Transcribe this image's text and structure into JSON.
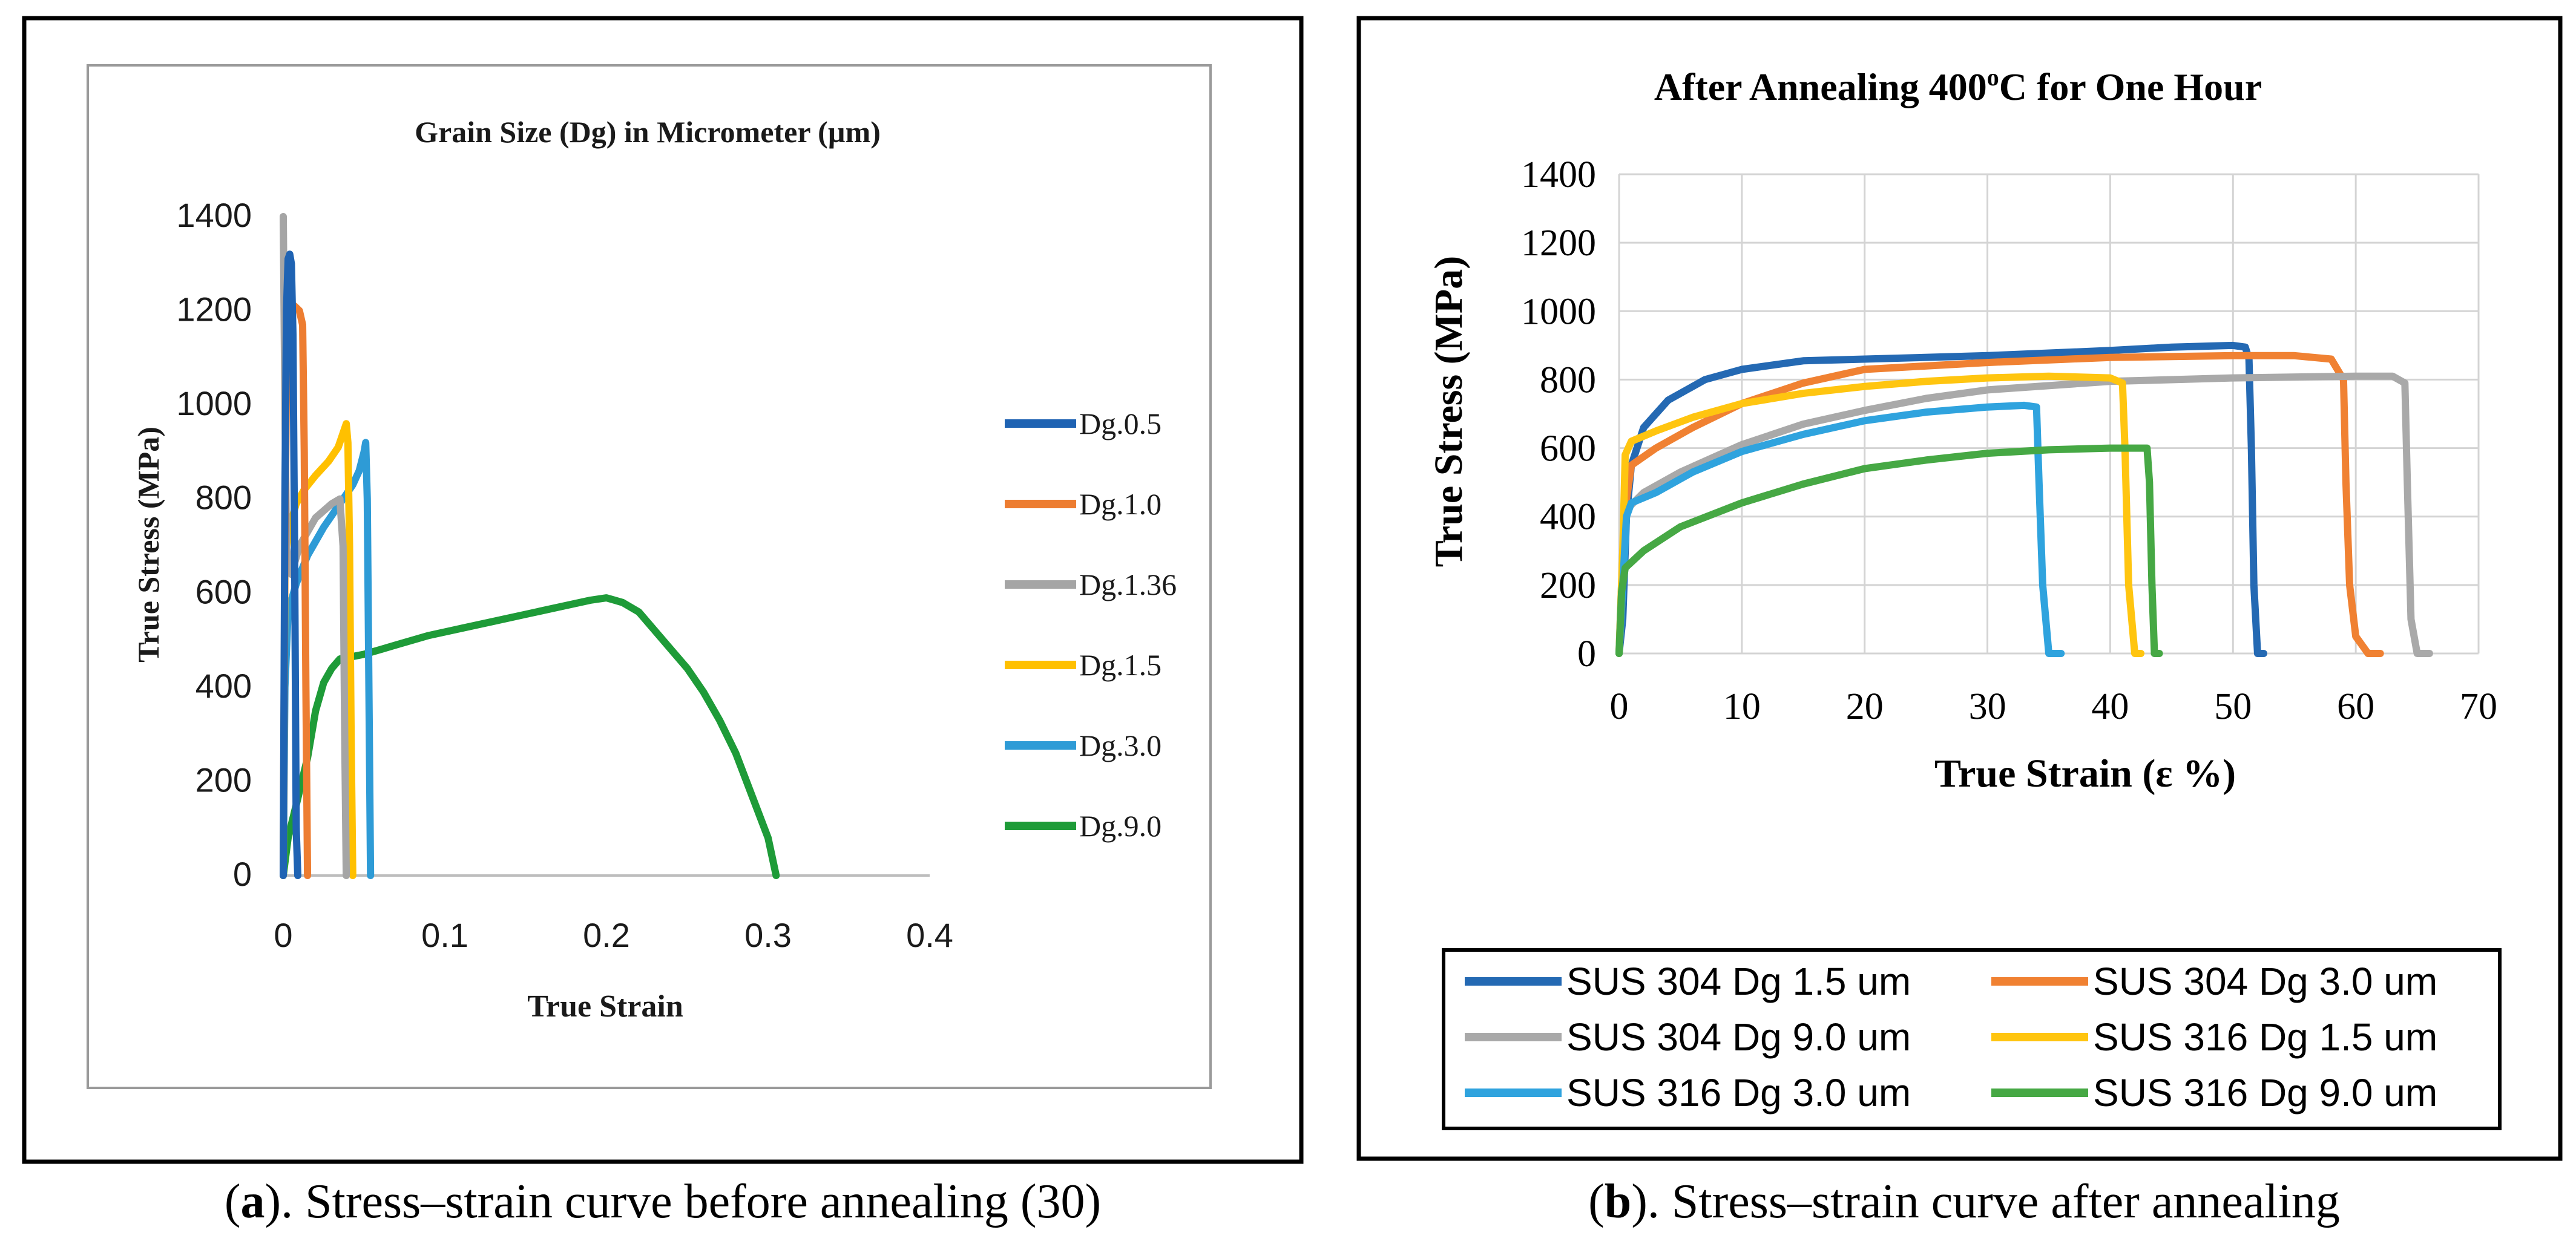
{
  "chart_data": [
    {
      "type": "line",
      "title": "Grain Size (Dg) in Micrometer (µm)",
      "xlabel": "True Strain",
      "ylabel": "True Stress (MPa)",
      "xlim": [
        0,
        0.4
      ],
      "ylim": [
        0,
        1400
      ],
      "xticks": [
        "0",
        "0.1",
        "0.2",
        "0.3",
        "0.4"
      ],
      "yticks": [
        "0",
        "200",
        "400",
        "600",
        "800",
        "1000",
        "1200",
        "1400"
      ],
      "legend_position": "right",
      "caption_letter": "a",
      "caption_text": ". Stress–strain curve before annealing (30)",
      "series": [
        {
          "name": "Dg.0.5",
          "color": "#1f63b3",
          "points": [
            [
              0,
              0
            ],
            [
              0.001,
              800
            ],
            [
              0.002,
              1200
            ],
            [
              0.003,
              1310
            ],
            [
              0.004,
              1320
            ],
            [
              0.005,
              1300
            ],
            [
              0.006,
              1150
            ],
            [
              0.007,
              700
            ],
            [
              0.008,
              100
            ],
            [
              0.009,
              0
            ]
          ]
        },
        {
          "name": "Dg.1.0",
          "color": "#ed7d31",
          "points": [
            [
              0,
              0
            ],
            [
              0.001,
              700
            ],
            [
              0.002,
              1050
            ],
            [
              0.004,
              1190
            ],
            [
              0.007,
              1210
            ],
            [
              0.01,
              1200
            ],
            [
              0.012,
              1170
            ],
            [
              0.013,
              900
            ],
            [
              0.014,
              400
            ],
            [
              0.015,
              0
            ]
          ]
        },
        {
          "name": "Dg.1.36",
          "color": "#a5a5a5",
          "points": [
            [
              0,
              1400
            ],
            [
              0.001,
              1000
            ],
            [
              0.002,
              700
            ],
            [
              0.005,
              640
            ],
            [
              0.01,
              700
            ],
            [
              0.02,
              760
            ],
            [
              0.03,
              790
            ],
            [
              0.035,
              800
            ],
            [
              0.037,
              700
            ],
            [
              0.038,
              300
            ],
            [
              0.039,
              0
            ]
          ]
        },
        {
          "name": "Dg.1.5",
          "color": "#ffc000",
          "points": [
            [
              0,
              0
            ],
            [
              0.001,
              650
            ],
            [
              0.003,
              730
            ],
            [
              0.008,
              790
            ],
            [
              0.013,
              820
            ],
            [
              0.02,
              850
            ],
            [
              0.028,
              880
            ],
            [
              0.034,
              910
            ],
            [
              0.037,
              940
            ],
            [
              0.039,
              960
            ],
            [
              0.04,
              920
            ],
            [
              0.041,
              700
            ],
            [
              0.042,
              300
            ],
            [
              0.043,
              0
            ]
          ]
        },
        {
          "name": "Dg.3.0",
          "color": "#2e9bd6",
          "points": [
            [
              0,
              0
            ],
            [
              0.001,
              400
            ],
            [
              0.003,
              560
            ],
            [
              0.008,
              620
            ],
            [
              0.015,
              680
            ],
            [
              0.025,
              740
            ],
            [
              0.035,
              790
            ],
            [
              0.043,
              830
            ],
            [
              0.047,
              860
            ],
            [
              0.05,
              900
            ],
            [
              0.051,
              920
            ],
            [
              0.052,
              800
            ],
            [
              0.053,
              400
            ],
            [
              0.054,
              0
            ]
          ]
        },
        {
          "name": "Dg.9.0",
          "color": "#1e9b38",
          "points": [
            [
              0,
              0
            ],
            [
              0.003,
              80
            ],
            [
              0.008,
              150
            ],
            [
              0.015,
              250
            ],
            [
              0.02,
              350
            ],
            [
              0.025,
              410
            ],
            [
              0.03,
              440
            ],
            [
              0.035,
              460
            ],
            [
              0.05,
              470
            ],
            [
              0.07,
              490
            ],
            [
              0.09,
              510
            ],
            [
              0.11,
              525
            ],
            [
              0.13,
              540
            ],
            [
              0.15,
              555
            ],
            [
              0.17,
              570
            ],
            [
              0.19,
              585
            ],
            [
              0.2,
              590
            ],
            [
              0.21,
              580
            ],
            [
              0.22,
              560
            ],
            [
              0.23,
              520
            ],
            [
              0.24,
              480
            ],
            [
              0.25,
              440
            ],
            [
              0.26,
              390
            ],
            [
              0.27,
              330
            ],
            [
              0.28,
              260
            ],
            [
              0.29,
              170
            ],
            [
              0.3,
              80
            ],
            [
              0.305,
              0
            ]
          ]
        }
      ]
    },
    {
      "type": "line",
      "title_main": "After Annealing 400",
      "title_sup": "o",
      "title_tail": "C for One Hour",
      "xlabel": "True Strain (ε %)",
      "ylabel": "True  Stress (MPa)",
      "xlim": [
        0,
        70
      ],
      "ylim": [
        0,
        1400
      ],
      "xticks": [
        "0",
        "10",
        "20",
        "30",
        "40",
        "50",
        "60",
        "70"
      ],
      "yticks": [
        "0",
        "200",
        "400",
        "600",
        "800",
        "1000",
        "1200",
        "1400"
      ],
      "legend_position": "bottom",
      "caption_letter": "b",
      "caption_text": ". Stress–strain curve after annealing",
      "series": [
        {
          "name": "SUS 304 Dg 1.5 um",
          "color": "#2469b3",
          "points": [
            [
              0,
              0
            ],
            [
              0.3,
              100
            ],
            [
              0.6,
              400
            ],
            [
              1,
              550
            ],
            [
              2,
              660
            ],
            [
              4,
              740
            ],
            [
              7,
              800
            ],
            [
              10,
              830
            ],
            [
              15,
              855
            ],
            [
              20,
              860
            ],
            [
              30,
              870
            ],
            [
              40,
              885
            ],
            [
              45,
              895
            ],
            [
              50,
              900
            ],
            [
              51,
              895
            ],
            [
              51.3,
              860
            ],
            [
              51.5,
              600
            ],
            [
              51.7,
              200
            ],
            [
              52,
              0
            ],
            [
              52.5,
              0
            ]
          ]
        },
        {
          "name": "SUS 304 Dg 3.0 um",
          "color": "#f08132",
          "points": [
            [
              0,
              0
            ],
            [
              0.3,
              200
            ],
            [
              0.6,
              450
            ],
            [
              1,
              550
            ],
            [
              3,
              600
            ],
            [
              6,
              660
            ],
            [
              10,
              730
            ],
            [
              15,
              790
            ],
            [
              20,
              830
            ],
            [
              30,
              850
            ],
            [
              40,
              865
            ],
            [
              50,
              870
            ],
            [
              55,
              870
            ],
            [
              58,
              860
            ],
            [
              59,
              800
            ],
            [
              59.2,
              500
            ],
            [
              59.5,
              200
            ],
            [
              60,
              50
            ],
            [
              61,
              0
            ],
            [
              62,
              0
            ]
          ]
        },
        {
          "name": "SUS 304 Dg 9.0 um",
          "color": "#a9a9a9",
          "points": [
            [
              0,
              0
            ],
            [
              0.3,
              300
            ],
            [
              0.6,
              420
            ],
            [
              2,
              470
            ],
            [
              5,
              530
            ],
            [
              10,
              610
            ],
            [
              15,
              670
            ],
            [
              20,
              710
            ],
            [
              25,
              745
            ],
            [
              30,
              770
            ],
            [
              40,
              795
            ],
            [
              50,
              805
            ],
            [
              60,
              810
            ],
            [
              63,
              810
            ],
            [
              64,
              790
            ],
            [
              64.2,
              500
            ],
            [
              64.5,
              100
            ],
            [
              65,
              0
            ],
            [
              66,
              0
            ]
          ]
        },
        {
          "name": "SUS 316 Dg 1.5 um",
          "color": "#ffc510",
          "points": [
            [
              0,
              0
            ],
            [
              0.3,
              300
            ],
            [
              0.5,
              580
            ],
            [
              1,
              620
            ],
            [
              3,
              650
            ],
            [
              6,
              690
            ],
            [
              10,
              730
            ],
            [
              15,
              760
            ],
            [
              20,
              780
            ],
            [
              25,
              795
            ],
            [
              30,
              805
            ],
            [
              35,
              810
            ],
            [
              40,
              805
            ],
            [
              41,
              790
            ],
            [
              41.2,
              600
            ],
            [
              41.5,
              200
            ],
            [
              42,
              0
            ],
            [
              42.5,
              0
            ]
          ]
        },
        {
          "name": "SUS 316 Dg 3.0 um",
          "color": "#2fa3de",
          "points": [
            [
              0,
              0
            ],
            [
              0.3,
              200
            ],
            [
              0.6,
              400
            ],
            [
              1,
              440
            ],
            [
              3,
              470
            ],
            [
              6,
              530
            ],
            [
              10,
              590
            ],
            [
              15,
              640
            ],
            [
              20,
              680
            ],
            [
              25,
              705
            ],
            [
              30,
              720
            ],
            [
              33,
              725
            ],
            [
              34,
              720
            ],
            [
              34.2,
              500
            ],
            [
              34.5,
              200
            ],
            [
              35,
              0
            ],
            [
              36,
              0
            ]
          ]
        },
        {
          "name": "SUS 316 Dg 9.0 um",
          "color": "#46a844",
          "points": [
            [
              0,
              0
            ],
            [
              0.2,
              180
            ],
            [
              0.5,
              250
            ],
            [
              2,
              300
            ],
            [
              5,
              370
            ],
            [
              10,
              440
            ],
            [
              15,
              495
            ],
            [
              20,
              540
            ],
            [
              25,
              565
            ],
            [
              30,
              585
            ],
            [
              35,
              595
            ],
            [
              40,
              600
            ],
            [
              43,
              600
            ],
            [
              43.2,
              500
            ],
            [
              43.4,
              200
            ],
            [
              43.6,
              0
            ],
            [
              44,
              0
            ]
          ]
        }
      ]
    }
  ]
}
